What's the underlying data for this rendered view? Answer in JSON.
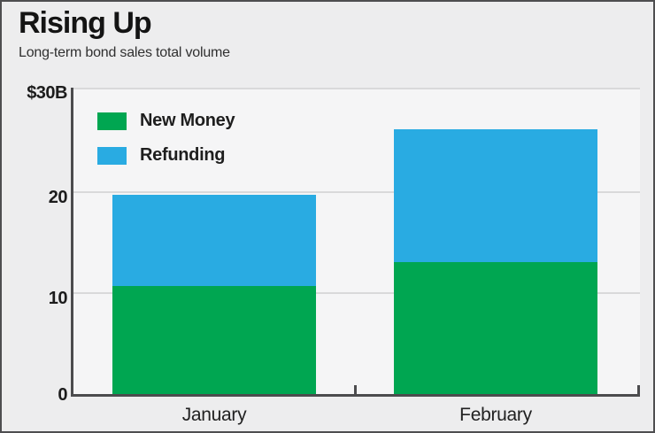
{
  "header": {
    "title": "Rising Up",
    "subtitle": "Long-term bond sales total volume"
  },
  "chart_data": {
    "type": "bar",
    "stacked": true,
    "categories": [
      "January",
      "February"
    ],
    "series": [
      {
        "name": "New Money",
        "color": "#00a651",
        "values": [
          10.6,
          12.9
        ]
      },
      {
        "name": "Refunding",
        "color": "#29abe2",
        "values": [
          8.9,
          13.0
        ]
      }
    ],
    "totals": [
      19.5,
      25.9
    ],
    "title": "Rising Up",
    "subtitle": "Long-term bond sales total volume",
    "xlabel": "",
    "ylabel": "",
    "ylim": [
      0,
      30
    ],
    "yticks": [
      0,
      10,
      20,
      30
    ],
    "ytick_labels": [
      "0",
      "10",
      "20",
      "$30B"
    ],
    "grid": "horizontal",
    "legend_position": "top-left-inside"
  },
  "colors": {
    "background": "#ededee",
    "plot_background": "#f5f5f6",
    "gridline": "#d9d9da",
    "axis": "#4c4c4e",
    "new_money_green": "#00a651",
    "refunding_blue": "#29abe2"
  }
}
